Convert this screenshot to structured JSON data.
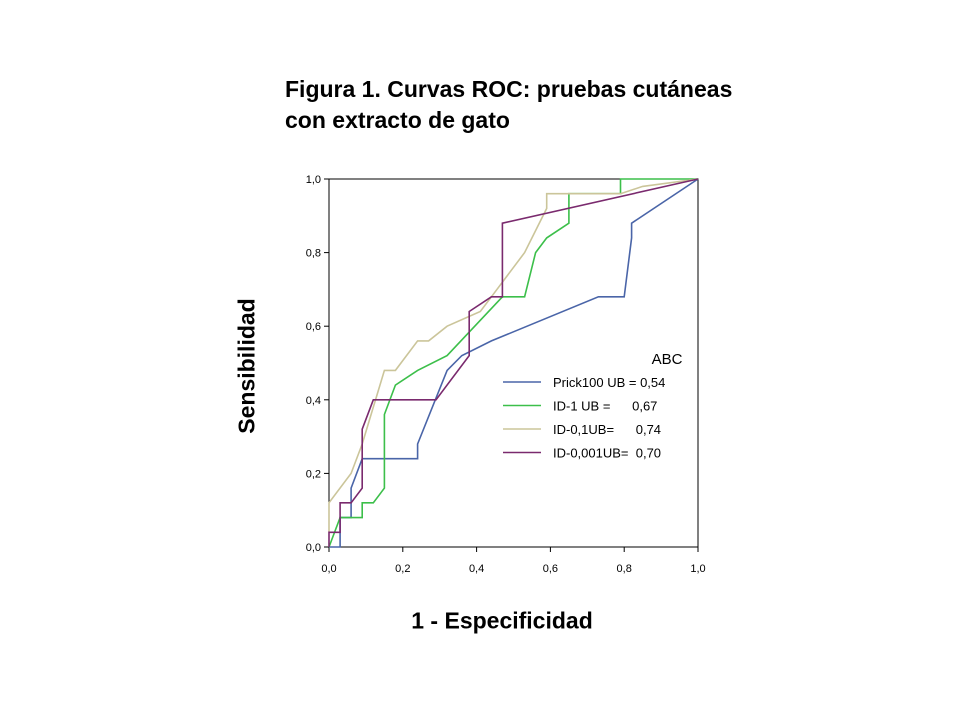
{
  "chart_data": {
    "type": "line",
    "title": "Figura 1. Curvas ROC: pruebas cutáneas con extracto de gato",
    "title_lines": [
      "Figura 1. Curvas ROC: pruebas cutáneas",
      "con extracto de gato"
    ],
    "xlabel": "1 - Especificidad",
    "ylabel": "Sensibilidad",
    "xlim": [
      0,
      1
    ],
    "ylim": [
      0,
      1
    ],
    "x_ticks": [
      "0,0",
      "0,2",
      "0,4",
      "0,6",
      "0,8",
      "1,0"
    ],
    "y_ticks": [
      "0,0",
      "0,2",
      "0,4",
      "0,6",
      "0,8",
      "1,0"
    ],
    "grid": false,
    "legend": {
      "title": "ABC",
      "placement": "bottom-right",
      "entries": [
        {
          "label": "Prick100 UB = 0,54",
          "color": "#4a65a8"
        },
        {
          "label": "ID-1 UB =      0,67",
          "color": "#3cbf4a"
        },
        {
          "label": "ID-0,1UB=      0,74",
          "color": "#cbc59a"
        },
        {
          "label": "ID-0,001UB=  0,70",
          "color": "#7a2a6e"
        }
      ]
    },
    "series": [
      {
        "name": "Prick100 UB",
        "color": "#4a65a8",
        "points": [
          [
            0,
            0
          ],
          [
            0.03,
            0
          ],
          [
            0.03,
            0.08
          ],
          [
            0.06,
            0.08
          ],
          [
            0.06,
            0.16
          ],
          [
            0.09,
            0.24
          ],
          [
            0.24,
            0.24
          ],
          [
            0.24,
            0.28
          ],
          [
            0.32,
            0.48
          ],
          [
            0.36,
            0.52
          ],
          [
            0.44,
            0.56
          ],
          [
            0.73,
            0.68
          ],
          [
            0.8,
            0.68
          ],
          [
            0.82,
            0.84
          ],
          [
            0.82,
            0.88
          ],
          [
            1,
            1
          ]
        ]
      },
      {
        "name": "ID-1 UB",
        "color": "#3cbf4a",
        "points": [
          [
            0,
            0
          ],
          [
            0.03,
            0.08
          ],
          [
            0.09,
            0.08
          ],
          [
            0.09,
            0.12
          ],
          [
            0.12,
            0.12
          ],
          [
            0.15,
            0.16
          ],
          [
            0.15,
            0.36
          ],
          [
            0.18,
            0.44
          ],
          [
            0.24,
            0.48
          ],
          [
            0.32,
            0.52
          ],
          [
            0.47,
            0.68
          ],
          [
            0.53,
            0.68
          ],
          [
            0.56,
            0.8
          ],
          [
            0.59,
            0.84
          ],
          [
            0.65,
            0.88
          ],
          [
            0.65,
            0.96
          ],
          [
            0.79,
            0.96
          ],
          [
            0.79,
            1
          ],
          [
            1,
            1
          ]
        ]
      },
      {
        "name": "ID-0,1UB",
        "color": "#cbc59a",
        "points": [
          [
            0,
            0.04
          ],
          [
            0,
            0.12
          ],
          [
            0.06,
            0.2
          ],
          [
            0.09,
            0.28
          ],
          [
            0.15,
            0.48
          ],
          [
            0.18,
            0.48
          ],
          [
            0.24,
            0.56
          ],
          [
            0.27,
            0.56
          ],
          [
            0.32,
            0.6
          ],
          [
            0.41,
            0.64
          ],
          [
            0.44,
            0.68
          ],
          [
            0.53,
            0.8
          ],
          [
            0.59,
            0.92
          ],
          [
            0.59,
            0.96
          ],
          [
            0.79,
            0.96
          ],
          [
            0.85,
            0.98
          ],
          [
            1,
            1
          ]
        ]
      },
      {
        "name": "ID-0,001UB",
        "color": "#7a2a6e",
        "points": [
          [
            0,
            0
          ],
          [
            0,
            0.04
          ],
          [
            0.03,
            0.04
          ],
          [
            0.03,
            0.12
          ],
          [
            0.06,
            0.12
          ],
          [
            0.09,
            0.16
          ],
          [
            0.09,
            0.32
          ],
          [
            0.12,
            0.4
          ],
          [
            0.29,
            0.4
          ],
          [
            0.38,
            0.52
          ],
          [
            0.38,
            0.64
          ],
          [
            0.44,
            0.68
          ],
          [
            0.47,
            0.68
          ],
          [
            0.47,
            0.88
          ],
          [
            1,
            1
          ]
        ]
      }
    ]
  }
}
